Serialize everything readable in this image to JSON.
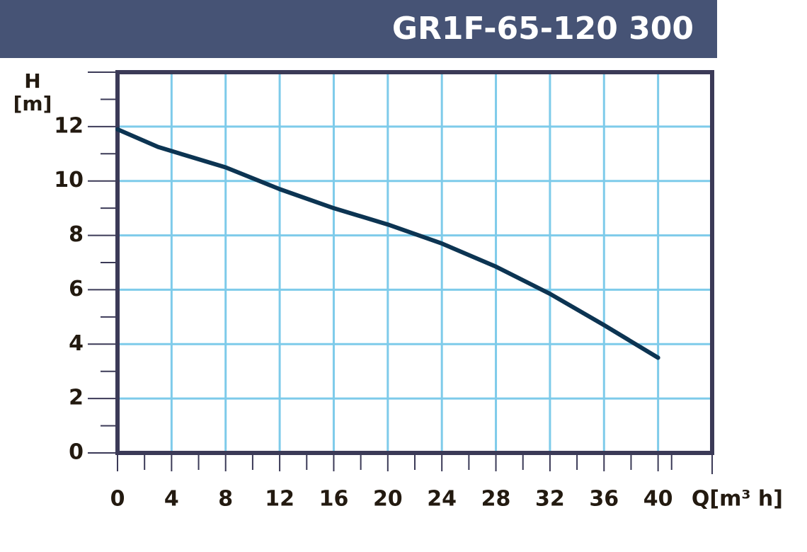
{
  "chart_data": {
    "type": "line",
    "title": "GR1F-65-120 300",
    "y_label": "H",
    "y_unit": "[m]",
    "x_label": "Q[m³ h]",
    "x": [
      0,
      3,
      8,
      12,
      16,
      20,
      24,
      28,
      32,
      36,
      40
    ],
    "series": [
      {
        "name": "GR1F-65-120 300",
        "color": "#0c3452",
        "values": [
          11.9,
          11.25,
          10.5,
          9.7,
          9.0,
          8.4,
          7.7,
          6.85,
          5.85,
          4.7,
          3.5
        ]
      }
    ],
    "xlim": [
      0,
      44
    ],
    "xticks": [
      0,
      4,
      8,
      12,
      16,
      20,
      24,
      28,
      32,
      36,
      40
    ],
    "ylim": [
      0,
      14
    ],
    "yticks": [
      0,
      2,
      4,
      6,
      8,
      10,
      12
    ],
    "grid": true,
    "grid_color": "#7ecbea",
    "frame_color": "#3b3a57",
    "header_color": "#465375"
  }
}
